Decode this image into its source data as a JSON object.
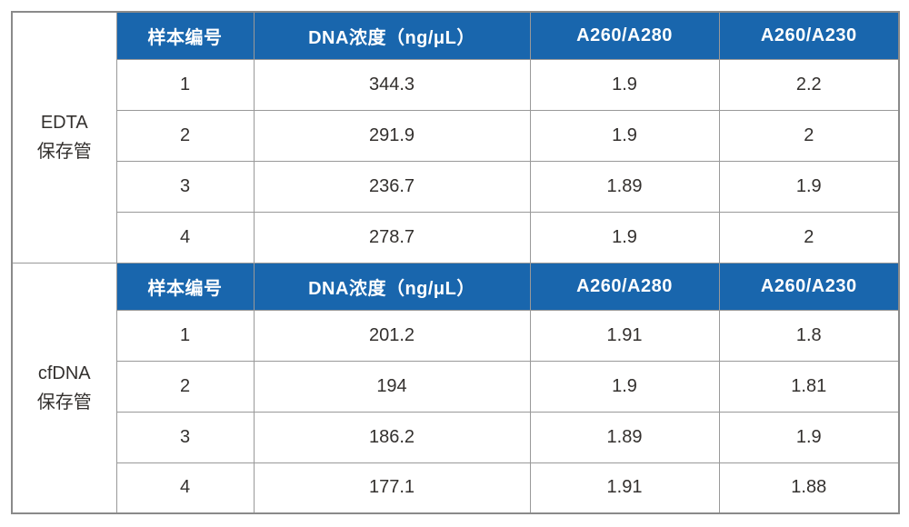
{
  "chart_data": {
    "type": "table",
    "title": "",
    "columns": [
      "样本编号",
      "DNA浓度（ng/μL）",
      "A260/A280",
      "A260/A230"
    ],
    "sections": [
      {
        "label": [
          "EDTA",
          "保存管"
        ],
        "rows": [
          [
            "1",
            "344.3",
            "1.9",
            "2.2"
          ],
          [
            "2",
            "291.9",
            "1.9",
            "2"
          ],
          [
            "3",
            "236.7",
            "1.89",
            "1.9"
          ],
          [
            "4",
            "278.7",
            "1.9",
            "2"
          ]
        ]
      },
      {
        "label": [
          "cfDNA",
          "保存管"
        ],
        "rows": [
          [
            "1",
            "201.2",
            "1.91",
            "1.8"
          ],
          [
            "2",
            "194",
            "1.9",
            "1.81"
          ],
          [
            "3",
            "186.2",
            "1.89",
            "1.9"
          ],
          [
            "4",
            "177.1",
            "1.91",
            "1.88"
          ]
        ]
      }
    ]
  },
  "colors": {
    "header_bg": "#1966ad",
    "header_text": "#ffffff",
    "cell_text": "#33302e",
    "inner_border": "#999999",
    "outer_border": "#8a8a8a",
    "background": "#ffffff"
  }
}
